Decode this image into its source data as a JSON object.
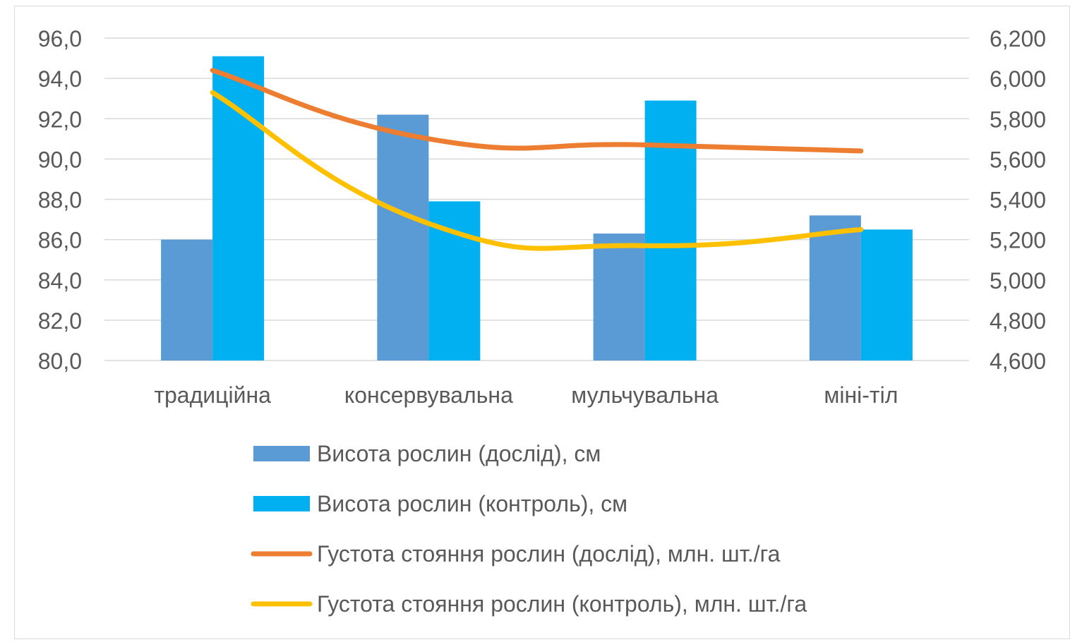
{
  "chart_data": {
    "type": "bar",
    "title": "",
    "xlabel": "",
    "ylabel": "",
    "y2label": "",
    "categories": [
      "традиційна",
      "консервувальна",
      "мульчувальна",
      "міні-тіл"
    ],
    "ylim": [
      80,
      96
    ],
    "y2lim": [
      4.6,
      6.2
    ],
    "y_ticks": [
      "80,0",
      "82,0",
      "84,0",
      "86,0",
      "88,0",
      "90,0",
      "92,0",
      "94,0",
      "96,0"
    ],
    "y2_ticks": [
      "4,600",
      "4,800",
      "5,000",
      "5,200",
      "5,400",
      "5,600",
      "5,800",
      "6,000",
      "6,200"
    ],
    "grid": true,
    "legend_position": "bottom",
    "bar_series": [
      {
        "name": "Висота рослин (дослід), см",
        "color": "#5b9bd5",
        "axis": "left",
        "values": [
          86.0,
          92.2,
          86.3,
          87.2
        ]
      },
      {
        "name": "Висота рослин (контроль), см",
        "color": "#00b0f0",
        "axis": "left",
        "values": [
          95.1,
          87.9,
          92.9,
          86.5
        ]
      }
    ],
    "line_series": [
      {
        "name": "Густота стояння рослин (дослід), млн. шт./га",
        "color": "#ed7d31",
        "axis": "right",
        "values": [
          6.04,
          5.7,
          5.67,
          5.64
        ]
      },
      {
        "name": "Густота стояння рослин (контроль), млн. шт./га",
        "color": "#ffc000",
        "axis": "right",
        "values": [
          5.93,
          5.28,
          5.17,
          5.25
        ]
      }
    ]
  }
}
